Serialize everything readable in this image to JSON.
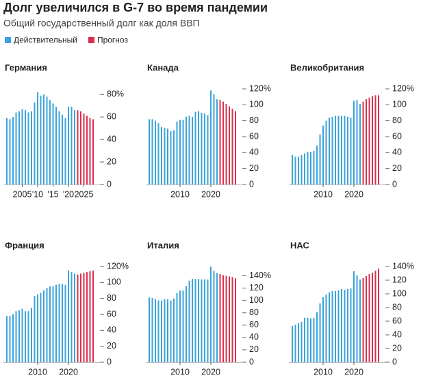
{
  "header": {
    "title": "Долг увеличился в G-7 во время пандемии",
    "subtitle": "Общий государственный долг как доля ВВП"
  },
  "chart_data": [
    {
      "type": "bar",
      "title": "Германия",
      "x": [
        2000,
        2001,
        2002,
        2003,
        2004,
        2005,
        2006,
        2007,
        2008,
        2009,
        2010,
        2011,
        2012,
        2013,
        2014,
        2015,
        2016,
        2017,
        2018,
        2019,
        2020,
        2021,
        2022,
        2023,
        2024,
        2025,
        2026,
        2027,
        2028
      ],
      "series": [
        {
          "name": "Действительный",
          "color": "#3ba3d9",
          "values": [
            59,
            58,
            60,
            64,
            65,
            67,
            66,
            64,
            65,
            73,
            82,
            79,
            80,
            78,
            75,
            72,
            69,
            65,
            62,
            59,
            69,
            69,
            66,
            null,
            null,
            null,
            null,
            null,
            null
          ]
        },
        {
          "name": "Прогноз",
          "color": "#d9304e",
          "values": [
            null,
            null,
            null,
            null,
            null,
            null,
            null,
            null,
            null,
            null,
            null,
            null,
            null,
            null,
            null,
            null,
            null,
            null,
            null,
            null,
            null,
            null,
            null,
            66,
            65,
            63,
            61,
            59,
            58
          ]
        }
      ],
      "xticks": [
        {
          "value": 2005,
          "label": "2005"
        },
        {
          "value": 2010,
          "label": "'10"
        },
        {
          "value": 2015,
          "label": "'15"
        },
        {
          "value": 2020,
          "label": "'20"
        },
        {
          "value": 2025,
          "label": "2025"
        }
      ],
      "ylim": [
        0,
        85
      ],
      "yticks": [
        0,
        20,
        40,
        60,
        {
          "value": 80,
          "label": "80%"
        }
      ]
    },
    {
      "type": "bar",
      "title": "Канада",
      "x": [
        2000,
        2001,
        2002,
        2003,
        2004,
        2005,
        2006,
        2007,
        2008,
        2009,
        2010,
        2011,
        2012,
        2013,
        2014,
        2015,
        2016,
        2017,
        2018,
        2019,
        2020,
        2021,
        2022,
        2023,
        2024,
        2025,
        2026,
        2027,
        2028
      ],
      "series": [
        {
          "name": "Действительный",
          "color": "#3ba3d9",
          "values": [
            82,
            82,
            80,
            77,
            72,
            71,
            70,
            67,
            68,
            79,
            81,
            81,
            85,
            86,
            85,
            91,
            92,
            90,
            89,
            87,
            118,
            113,
            107,
            null,
            null,
            null,
            null,
            null,
            null
          ]
        },
        {
          "name": "Прогноз",
          "color": "#d9304e",
          "values": [
            null,
            null,
            null,
            null,
            null,
            null,
            null,
            null,
            null,
            null,
            null,
            null,
            null,
            null,
            null,
            null,
            null,
            null,
            null,
            null,
            null,
            null,
            null,
            106,
            104,
            101,
            98,
            95,
            92
          ]
        }
      ],
      "xticks": [
        2010,
        2020
      ],
      "ylim": [
        0,
        120
      ],
      "yticks": [
        0,
        20,
        40,
        60,
        80,
        100,
        {
          "value": 120,
          "label": "120%"
        }
      ]
    },
    {
      "type": "bar",
      "title": "Великобритания",
      "x": [
        2000,
        2001,
        2002,
        2003,
        2004,
        2005,
        2006,
        2007,
        2008,
        2009,
        2010,
        2011,
        2012,
        2013,
        2014,
        2015,
        2016,
        2017,
        2018,
        2019,
        2020,
        2021,
        2022,
        2023,
        2024,
        2025,
        2026,
        2027,
        2028
      ],
      "series": [
        {
          "name": "Действительный",
          "color": "#3ba3d9",
          "values": [
            37,
            35,
            35,
            37,
            39,
            41,
            41,
            42,
            49,
            63,
            74,
            80,
            84,
            85,
            86,
            86,
            86,
            86,
            85,
            84,
            105,
            106,
            101,
            null,
            null,
            null,
            null,
            null,
            null
          ]
        },
        {
          "name": "Прогноз",
          "color": "#d9304e",
          "values": [
            null,
            null,
            null,
            null,
            null,
            null,
            null,
            null,
            null,
            null,
            null,
            null,
            null,
            null,
            null,
            null,
            null,
            null,
            null,
            null,
            null,
            null,
            null,
            104,
            107,
            109,
            111,
            112,
            112
          ]
        }
      ],
      "xticks": [
        2010,
        2020
      ],
      "ylim": [
        0,
        120
      ],
      "yticks": [
        0,
        20,
        40,
        60,
        80,
        100,
        {
          "value": 120,
          "label": "120%"
        }
      ]
    },
    {
      "type": "bar",
      "title": "Франция",
      "x": [
        2000,
        2001,
        2002,
        2003,
        2004,
        2005,
        2006,
        2007,
        2008,
        2009,
        2010,
        2011,
        2012,
        2013,
        2014,
        2015,
        2016,
        2017,
        2018,
        2019,
        2020,
        2021,
        2022,
        2023,
        2024,
        2025,
        2026,
        2027,
        2028
      ],
      "series": [
        {
          "name": "Действительный",
          "color": "#3ba3d9",
          "values": [
            58,
            58,
            60,
            64,
            65,
            67,
            64,
            64,
            68,
            83,
            85,
            87,
            90,
            93,
            95,
            95,
            97,
            98,
            98,
            97,
            115,
            113,
            111,
            null,
            null,
            null,
            null,
            null,
            null
          ]
        },
        {
          "name": "Прогноз",
          "color": "#d9304e",
          "values": [
            null,
            null,
            null,
            null,
            null,
            null,
            null,
            null,
            null,
            null,
            null,
            null,
            null,
            null,
            null,
            null,
            null,
            null,
            null,
            null,
            null,
            null,
            null,
            110,
            111,
            112,
            113,
            114,
            115
          ]
        }
      ],
      "xticks": [
        2010,
        2020
      ],
      "ylim": [
        0,
        120
      ],
      "yticks": [
        0,
        20,
        40,
        60,
        80,
        100,
        {
          "value": 120,
          "label": "120%"
        }
      ]
    },
    {
      "type": "bar",
      "title": "Италия",
      "x": [
        2000,
        2001,
        2002,
        2003,
        2004,
        2005,
        2006,
        2007,
        2008,
        2009,
        2010,
        2011,
        2012,
        2013,
        2014,
        2015,
        2016,
        2017,
        2018,
        2019,
        2020,
        2021,
        2022,
        2023,
        2024,
        2025,
        2026,
        2027,
        2028
      ],
      "series": [
        {
          "name": "Действительный",
          "color": "#3ba3d9",
          "values": [
            105,
            104,
            102,
            100,
            100,
            102,
            102,
            100,
            103,
            112,
            116,
            116,
            123,
            132,
            135,
            135,
            135,
            134,
            134,
            134,
            155,
            148,
            144,
            null,
            null,
            null,
            null,
            null,
            null
          ]
        },
        {
          "name": "Прогноз",
          "color": "#d9304e",
          "values": [
            null,
            null,
            null,
            null,
            null,
            null,
            null,
            null,
            null,
            null,
            null,
            null,
            null,
            null,
            null,
            null,
            null,
            null,
            null,
            null,
            null,
            null,
            null,
            143,
            141,
            140,
            139,
            138,
            136
          ]
        }
      ],
      "xticks": [
        2010,
        2020
      ],
      "ylim": [
        0,
        155
      ],
      "yticks": [
        0,
        20,
        40,
        60,
        80,
        100,
        120,
        {
          "value": 140,
          "label": "140%"
        }
      ]
    },
    {
      "type": "bar",
      "title": "НАС",
      "x": [
        2000,
        2001,
        2002,
        2003,
        2004,
        2005,
        2006,
        2007,
        2008,
        2009,
        2010,
        2011,
        2012,
        2013,
        2014,
        2015,
        2016,
        2017,
        2018,
        2019,
        2020,
        2021,
        2022,
        2023,
        2024,
        2025,
        2026,
        2027,
        2028
      ],
      "series": [
        {
          "name": "Действительный",
          "color": "#3ba3d9",
          "values": [
            53,
            55,
            57,
            59,
            65,
            65,
            64,
            65,
            73,
            86,
            95,
            99,
            102,
            104,
            104,
            105,
            107,
            106,
            107,
            108,
            133,
            127,
            121,
            null,
            null,
            null,
            null,
            null,
            null
          ]
        },
        {
          "name": "Прогноз",
          "color": "#d9304e",
          "values": [
            null,
            null,
            null,
            null,
            null,
            null,
            null,
            null,
            null,
            null,
            null,
            null,
            null,
            null,
            null,
            null,
            null,
            null,
            null,
            null,
            null,
            null,
            null,
            123,
            126,
            129,
            131,
            134,
            137
          ]
        }
      ],
      "xticks": [
        2010,
        2020
      ],
      "ylim": [
        0,
        140
      ],
      "yticks": [
        0,
        20,
        40,
        60,
        80,
        100,
        120,
        {
          "value": 140,
          "label": "140%"
        }
      ]
    }
  ]
}
